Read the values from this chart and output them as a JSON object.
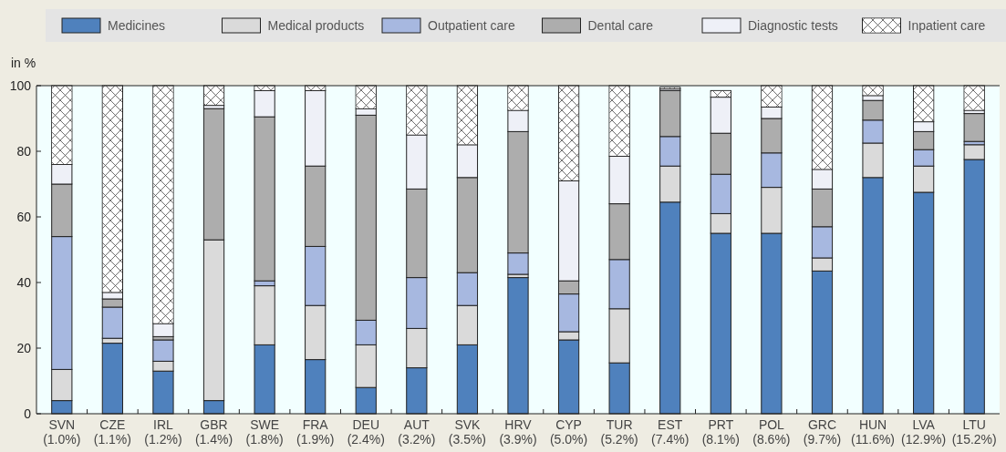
{
  "chart_data": {
    "type": "bar",
    "stacked": true,
    "ylabel": "in %",
    "legend": "top",
    "grid": false,
    "categories": [
      "SVN (1.0%)",
      "CZE (1.1%)",
      "IRL (1.2%)",
      "GBR (1.4%)",
      "SWE (1.8%)",
      "FRA (1.9%)",
      "DEU (2.4%)",
      "AUT (3.2%)",
      "SVK (3.5%)",
      "HRV (3.9%)",
      "CYP (5.0%)",
      "TUR (5.2%)",
      "EST (7.4%)",
      "PRT (8.1%)",
      "POL (8.6%)",
      "GRC (9.7%)",
      "HUN (11.6%)",
      "LVA (12.9%)",
      "LTU (15.2%)"
    ],
    "ylim": [
      0,
      100
    ],
    "yticks": [
      0,
      20,
      40,
      60,
      80,
      100
    ],
    "series": [
      {
        "name": "Medicines",
        "color": "#4f81bd",
        "values": [
          4,
          21.5,
          13,
          4,
          21,
          16.5,
          8,
          14,
          21,
          41.5,
          22.5,
          15.5,
          64.5,
          55,
          55,
          43.5,
          72,
          67.5,
          77.5
        ]
      },
      {
        "name": "Medical products",
        "color": "#dadada",
        "values": [
          9.5,
          1.5,
          3,
          49,
          18,
          16.5,
          13,
          12,
          12,
          1,
          2.5,
          16.5,
          11,
          6,
          14,
          4,
          10.5,
          8,
          4.5
        ]
      },
      {
        "name": "Outpatient care",
        "color": "#a7b8e0",
        "values": [
          40.5,
          9.5,
          6.5,
          0,
          1.5,
          18,
          7.5,
          15.5,
          10,
          6.5,
          11.5,
          15,
          9,
          12,
          10.5,
          9.5,
          7,
          5,
          1
        ]
      },
      {
        "name": "Dental care",
        "color": "#adadad",
        "values": [
          16,
          2.5,
          1,
          40,
          50,
          24.5,
          62.5,
          27,
          29,
          37,
          4,
          17,
          14,
          12.5,
          10.5,
          11.5,
          6,
          5.5,
          8.5
        ]
      },
      {
        "name": "Diagnostic tests",
        "color": "#eef0f7",
        "values": [
          6,
          2,
          4,
          1,
          8,
          23,
          2,
          16.5,
          10,
          6.5,
          30.5,
          14.5,
          0.5,
          11,
          3.5,
          6,
          1.5,
          3,
          1
        ]
      },
      {
        "name": "Inpatient care",
        "color": "#ffffff",
        "values": [
          24,
          63,
          72.5,
          6,
          1.5,
          1.5,
          7,
          15,
          18,
          7.5,
          29,
          21.5,
          0.5,
          2,
          6.5,
          25.5,
          3,
          11,
          7.5
        ]
      }
    ]
  }
}
